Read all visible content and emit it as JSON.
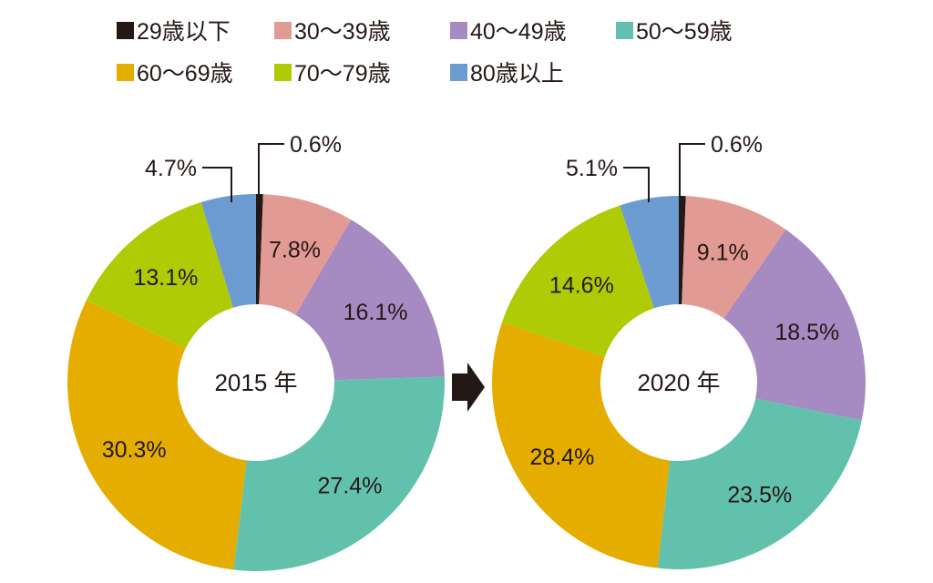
{
  "chart_data": [
    {
      "type": "pie",
      "donut": true,
      "center_label": "2015 年",
      "categories": [
        "29歳以下",
        "30～39歳",
        "40～49歳",
        "50～59歳",
        "60～69歳",
        "70～79歳",
        "80歳以上"
      ],
      "values": [
        0.6,
        7.8,
        16.1,
        27.4,
        30.3,
        13.1,
        4.7
      ],
      "labels": [
        "0.6%",
        "7.8%",
        "16.1%",
        "27.4%",
        "30.3%",
        "13.1%",
        "4.7%"
      ]
    },
    {
      "type": "pie",
      "donut": true,
      "center_label": "2020 年",
      "categories": [
        "29歳以下",
        "30～39歳",
        "40～49歳",
        "50～59歳",
        "60～69歳",
        "70～79歳",
        "80歳以上"
      ],
      "values": [
        0.6,
        9.1,
        18.5,
        23.5,
        28.4,
        14.6,
        5.1
      ],
      "labels": [
        "0.6%",
        "9.1%",
        "18.5%",
        "23.5%",
        "28.4%",
        "14.6%",
        "5.1%"
      ]
    }
  ],
  "legend": {
    "placement": "top",
    "items": [
      {
        "label": "29歳以下",
        "color": "#231815"
      },
      {
        "label": "30～39歳",
        "color": "#e29a94"
      },
      {
        "label": "40～49歳",
        "color": "#a68ac2"
      },
      {
        "label": "50～59歳",
        "color": "#62c1ad"
      },
      {
        "label": "60～69歳",
        "color": "#e5ad00"
      },
      {
        "label": "70～79歳",
        "color": "#aecb05"
      },
      {
        "label": "80歳以上",
        "color": "#6c9bd2"
      }
    ]
  },
  "arrow_icon": "right-arrow-icon"
}
